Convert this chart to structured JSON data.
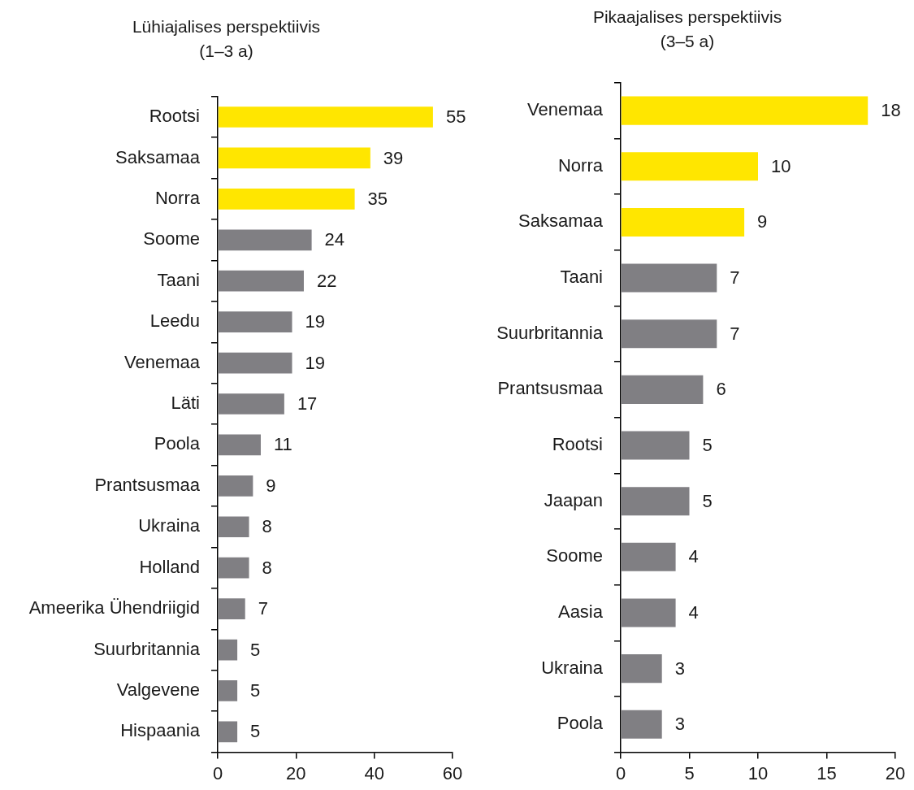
{
  "chart_data": [
    {
      "type": "bar",
      "orientation": "horizontal",
      "title": "Lühiajalises perspektiivis\n(1–3 a)",
      "categories": [
        "Rootsi",
        "Saksamaa",
        "Norra",
        "Soome",
        "Taani",
        "Leedu",
        "Venemaa",
        "Läti",
        "Poola",
        "Prantsusmaa",
        "Ukraina",
        "Holland",
        "Ameerika Ühendriigid",
        "Suurbritannia",
        "Valgevene",
        "Hispaania"
      ],
      "values": [
        55,
        39,
        35,
        24,
        22,
        19,
        19,
        17,
        11,
        9,
        8,
        8,
        7,
        5,
        5,
        5
      ],
      "colors": [
        "#ffe600",
        "#ffe600",
        "#ffe600",
        "#807f83",
        "#807f83",
        "#807f83",
        "#807f83",
        "#807f83",
        "#807f83",
        "#807f83",
        "#807f83",
        "#807f83",
        "#807f83",
        "#807f83",
        "#807f83",
        "#807f83"
      ],
      "xlim": [
        0,
        60
      ],
      "xticks": [
        0,
        20,
        40,
        60
      ],
      "grid": false,
      "legend": false,
      "data_labels": true
    },
    {
      "type": "bar",
      "orientation": "horizontal",
      "title": "Pikaajalises perspektiivis\n(3–5 a)",
      "categories": [
        "Venemaa",
        "Norra",
        "Saksamaa",
        "Taani",
        "Suurbritannia",
        "Prantsusmaa",
        "Rootsi",
        "Jaapan",
        "Soome",
        "Aasia",
        "Ukraina",
        "Poola"
      ],
      "values": [
        18,
        10,
        9,
        7,
        7,
        6,
        5,
        5,
        4,
        4,
        3,
        3
      ],
      "colors": [
        "#ffe600",
        "#ffe600",
        "#ffe600",
        "#807f83",
        "#807f83",
        "#807f83",
        "#807f83",
        "#807f83",
        "#807f83",
        "#807f83",
        "#807f83",
        "#807f83"
      ],
      "xlim": [
        0,
        20
      ],
      "xticks": [
        0,
        5,
        10,
        15,
        20
      ],
      "grid": false,
      "legend": false,
      "data_labels": true
    }
  ]
}
